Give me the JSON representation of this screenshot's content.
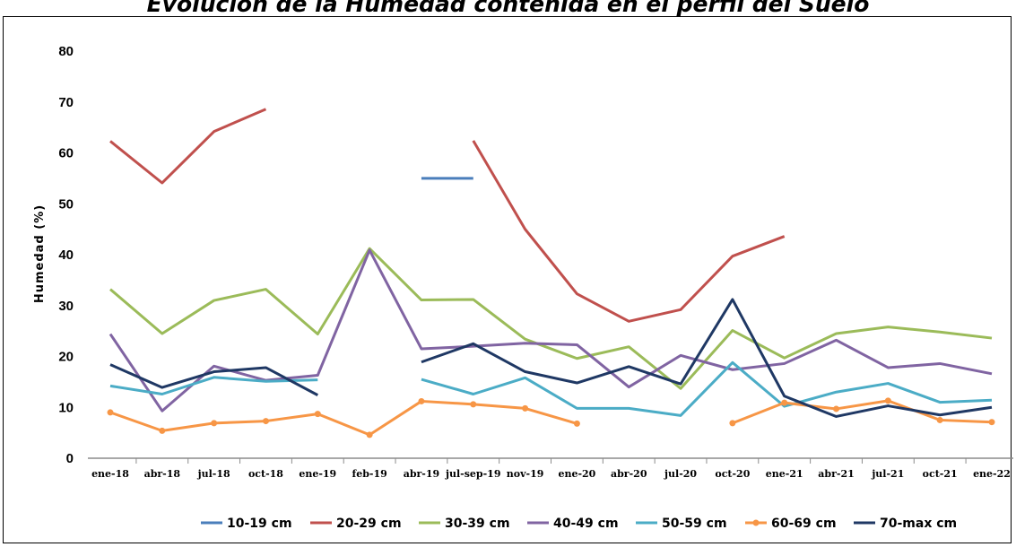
{
  "chart_data": {
    "type": "line",
    "title": "Evolución de la Humedad contenida en el perfil del Suelo",
    "ylabel": "Humedad (%)",
    "xlabel": "",
    "ylim": [
      0,
      80
    ],
    "yticks": [
      0,
      10,
      20,
      30,
      40,
      50,
      60,
      70,
      80
    ],
    "grid": false,
    "legend": "bottom",
    "categories": [
      "ene-18",
      "abr-18",
      "jul-18",
      "oct-18",
      "ene-19",
      "feb-19",
      "abr-19",
      "jul-sep-19",
      "nov-19",
      "ene-20",
      "abr-20",
      "jul-20",
      "oct-20",
      "ene-21",
      "abr-21",
      "jul-21",
      "oct-21",
      "ene-22"
    ],
    "series": [
      {
        "name": "10-19 cm",
        "color": "#4a7ebb",
        "values": [
          null,
          null,
          null,
          null,
          null,
          null,
          55,
          55,
          null,
          null,
          null,
          null,
          null,
          null,
          null,
          null,
          null,
          null
        ]
      },
      {
        "name": "20-29 cm",
        "color": "#c0504d",
        "values": [
          62.3,
          54.1,
          64.2,
          68.6,
          null,
          null,
          null,
          62.4,
          45,
          32.3,
          26.9,
          29.2,
          39.7,
          43.6,
          null,
          null,
          null,
          null
        ]
      },
      {
        "name": "30-39 cm",
        "color": "#9bbb59",
        "values": [
          33.2,
          24.5,
          31,
          33.2,
          24.4,
          41.2,
          31.1,
          31.2,
          23.4,
          19.6,
          21.9,
          13.7,
          25.1,
          19.7,
          24.5,
          25.8,
          24.8,
          23.6
        ]
      },
      {
        "name": "40-49 cm",
        "color": "#8064a2",
        "values": [
          24.4,
          9.3,
          18.1,
          15.3,
          16.3,
          40.9,
          21.5,
          22,
          22.6,
          22.3,
          14,
          20.2,
          17.4,
          18.6,
          23.2,
          17.8,
          18.6,
          16.6
        ]
      },
      {
        "name": "50-59 cm",
        "color": "#4bacc6",
        "values": [
          14.2,
          12.6,
          15.9,
          15.1,
          15.4,
          null,
          15.5,
          12.6,
          15.8,
          9.8,
          9.8,
          8.4,
          18.8,
          10.2,
          13,
          14.7,
          11,
          11.4
        ]
      },
      {
        "name": "60-69 cm",
        "color": "#f79646",
        "values": [
          9,
          5.4,
          6.9,
          7.3,
          8.7,
          4.6,
          11.2,
          10.6,
          9.8,
          6.8,
          null,
          null,
          6.9,
          10.9,
          9.7,
          11.3,
          7.5,
          7.1
        ]
      },
      {
        "name": "70-max cm",
        "color": "#1f3864",
        "values": [
          18.4,
          13.9,
          17,
          17.8,
          12.4,
          null,
          18.9,
          22.5,
          17,
          14.8,
          18,
          14.6,
          31.2,
          12.2,
          8.2,
          10.3,
          8.5,
          10
        ]
      }
    ]
  }
}
